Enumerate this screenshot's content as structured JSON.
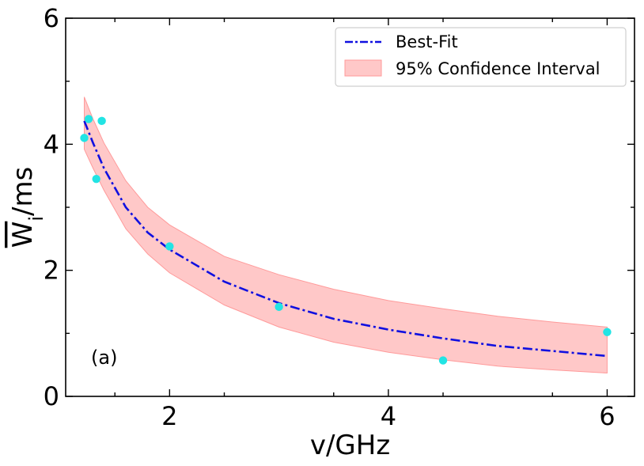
{
  "chart_data": {
    "type": "line",
    "xlabel": "v/GHz",
    "ylabel_base": "W",
    "ylabel_sub": "i",
    "ylabel_unit": "/ms",
    "xlim": [
      1.05,
      6.25
    ],
    "ylim": [
      0,
      6
    ],
    "x_ticks": [
      2,
      4,
      6
    ],
    "y_ticks": [
      0,
      2,
      4,
      6
    ],
    "x_tick_labels": [
      "2",
      "4",
      "6"
    ],
    "y_tick_labels": [
      "0",
      "2",
      "4",
      "6"
    ],
    "annotation": "(a)",
    "legend_position": "top-right",
    "legend": {
      "fit_label": "Best-Fit",
      "ci_label": "95% Confidence Interval"
    },
    "colors": {
      "fit": "#1010e0",
      "band_fill": "#ffc8c8",
      "band_edge": "#ff9a9a",
      "points": "#22e4e4"
    },
    "points": {
      "x": [
        1.22,
        1.26,
        1.33,
        1.38,
        2.0,
        3.0,
        4.5,
        6.0
      ],
      "y": [
        4.1,
        4.4,
        3.45,
        4.37,
        2.38,
        1.42,
        0.57,
        1.02
      ]
    },
    "best_fit": {
      "x": [
        1.22,
        1.3,
        1.4,
        1.6,
        1.8,
        2.0,
        2.5,
        3.0,
        3.5,
        4.0,
        4.5,
        5.0,
        5.5,
        6.0
      ],
      "y": [
        4.37,
        4.02,
        3.62,
        3.0,
        2.6,
        2.33,
        1.82,
        1.48,
        1.23,
        1.06,
        0.92,
        0.8,
        0.72,
        0.64
      ]
    },
    "ci_upper": {
      "x": [
        1.22,
        1.3,
        1.4,
        1.6,
        1.8,
        2.0,
        2.5,
        3.0,
        3.5,
        4.0,
        4.5,
        5.0,
        5.5,
        6.0
      ],
      "y": [
        4.75,
        4.4,
        4.02,
        3.42,
        3.0,
        2.72,
        2.22,
        1.93,
        1.7,
        1.52,
        1.39,
        1.27,
        1.18,
        1.1
      ]
    },
    "ci_lower": {
      "x": [
        1.22,
        1.3,
        1.4,
        1.6,
        1.8,
        2.0,
        2.5,
        3.0,
        3.5,
        4.0,
        4.5,
        5.0,
        5.5,
        6.0
      ],
      "y": [
        3.92,
        3.62,
        3.27,
        2.66,
        2.26,
        1.96,
        1.45,
        1.1,
        0.86,
        0.7,
        0.58,
        0.48,
        0.42,
        0.37
      ]
    }
  }
}
